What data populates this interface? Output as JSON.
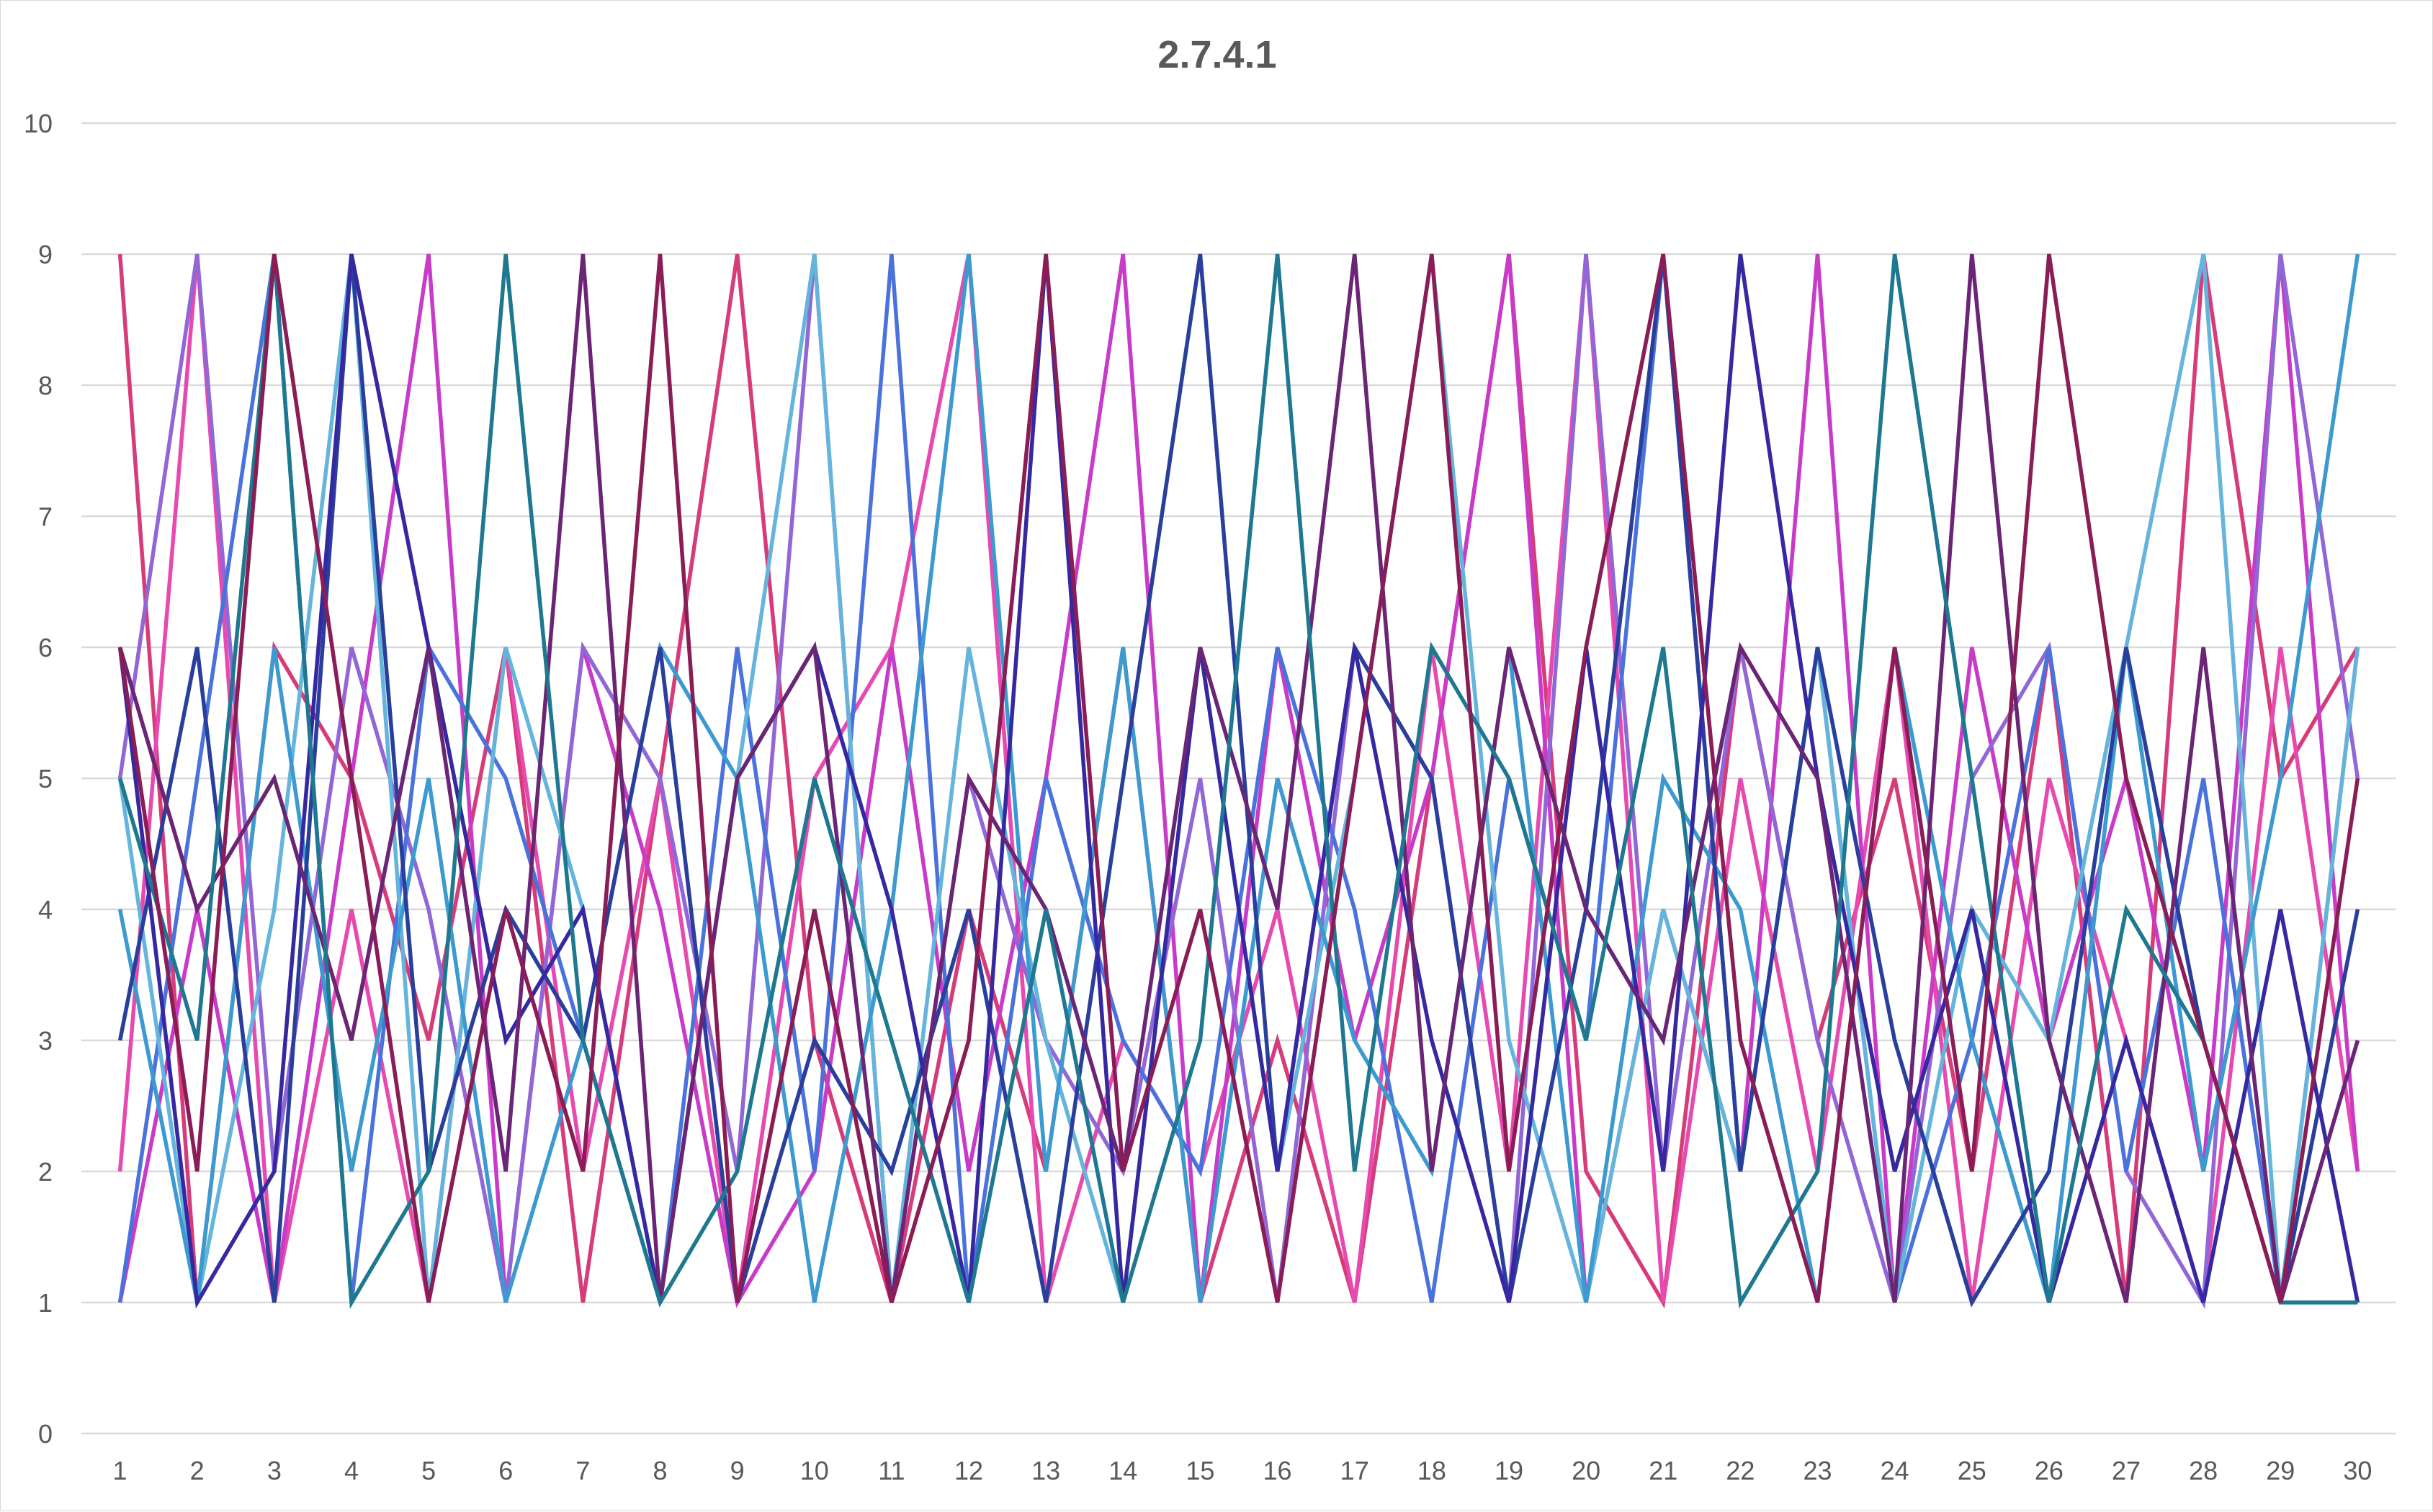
{
  "chart_data": {
    "type": "line",
    "title": "2.7.4.1",
    "xlabel": "",
    "ylabel": "",
    "x": [
      1,
      2,
      3,
      4,
      5,
      6,
      7,
      8,
      9,
      10,
      11,
      12,
      13,
      14,
      15,
      16,
      17,
      18,
      19,
      20,
      21,
      22,
      23,
      24,
      25,
      26,
      27,
      28,
      29,
      30
    ],
    "ylim": [
      0,
      10
    ],
    "yticks": [
      0,
      1,
      2,
      3,
      4,
      5,
      6,
      7,
      8,
      9,
      10
    ],
    "grid": true,
    "legend": "none",
    "series": [
      {
        "color": "#d63c7a",
        "values": [
          9,
          1,
          6,
          5,
          3,
          6,
          1,
          5,
          9,
          3,
          1,
          4,
          2,
          6,
          1,
          3,
          1,
          5,
          9,
          2,
          1,
          6,
          3,
          5,
          2,
          6,
          1,
          9,
          5,
          6
        ]
      },
      {
        "color": "#e64ab0",
        "values": [
          2,
          9,
          1,
          4,
          1,
          6,
          2,
          5,
          1,
          5,
          6,
          9,
          1,
          3,
          2,
          4,
          1,
          6,
          2,
          9,
          1,
          5,
          2,
          6,
          1,
          5,
          3,
          1,
          6,
          2
        ]
      },
      {
        "color": "#c83bc8",
        "values": [
          1,
          4,
          1,
          5,
          9,
          1,
          6,
          4,
          1,
          2,
          6,
          2,
          5,
          9,
          1,
          6,
          3,
          5,
          9,
          1,
          4,
          2,
          9,
          1,
          6,
          3,
          5,
          2,
          9,
          2
        ]
      },
      {
        "color": "#9166d6",
        "values": [
          5,
          9,
          2,
          6,
          4,
          1,
          6,
          5,
          2,
          9,
          1,
          5,
          3,
          2,
          5,
          1,
          6,
          5,
          1,
          9,
          2,
          6,
          3,
          1,
          5,
          6,
          2,
          1,
          9,
          5
        ]
      },
      {
        "color": "#4a72dc",
        "values": [
          1,
          5,
          9,
          1,
          6,
          5,
          3,
          1,
          6,
          2,
          9,
          1,
          5,
          3,
          2,
          6,
          4,
          1,
          5,
          3,
          9,
          2,
          6,
          1,
          3,
          6,
          2,
          5,
          1,
          6
        ]
      },
      {
        "color": "#64b4dc",
        "values": [
          5,
          1,
          4,
          9,
          1,
          6,
          4,
          1,
          5,
          9,
          1,
          6,
          3,
          1,
          6,
          2,
          5,
          9,
          3,
          1,
          4,
          2,
          6,
          1,
          4,
          3,
          6,
          9,
          1,
          6
        ]
      },
      {
        "color": "#3c9ad0",
        "values": [
          4,
          1,
          6,
          2,
          5,
          1,
          3,
          6,
          5,
          1,
          4,
          9,
          2,
          6,
          1,
          5,
          3,
          2,
          6,
          1,
          5,
          4,
          1,
          6,
          3,
          1,
          6,
          2,
          5,
          9
        ]
      },
      {
        "color": "#2a3e9c",
        "values": [
          3,
          6,
          1,
          9,
          2,
          4,
          3,
          6,
          1,
          3,
          2,
          4,
          1,
          5,
          9,
          2,
          6,
          5,
          1,
          4,
          9,
          2,
          6,
          3,
          1,
          2,
          6,
          3,
          1,
          4
        ]
      },
      {
        "color": "#3528a0",
        "values": [
          6,
          1,
          2,
          9,
          6,
          3,
          4,
          1,
          5,
          6,
          4,
          1,
          9,
          1,
          6,
          2,
          6,
          3,
          1,
          6,
          2,
          9,
          5,
          2,
          4,
          1,
          3,
          1,
          4,
          1
        ]
      },
      {
        "color": "#6a2575",
        "values": [
          6,
          4,
          5,
          3,
          6,
          2,
          9,
          1,
          5,
          6,
          1,
          5,
          4,
          2,
          6,
          4,
          9,
          2,
          6,
          4,
          3,
          6,
          5,
          1,
          9,
          3,
          1,
          6,
          1,
          3
        ]
      },
      {
        "color": "#1e7890",
        "values": [
          5,
          3,
          9,
          1,
          2,
          9,
          3,
          1,
          2,
          5,
          3,
          1,
          4,
          1,
          3,
          9,
          2,
          6,
          5,
          3,
          6,
          1,
          2,
          9,
          5,
          1,
          4,
          3,
          1,
          1
        ]
      },
      {
        "color": "#8a1c56",
        "values": [
          6,
          2,
          9,
          5,
          1,
          4,
          2,
          9,
          1,
          4,
          1,
          3,
          9,
          2,
          4,
          1,
          5,
          9,
          2,
          6,
          9,
          3,
          1,
          6,
          2,
          9,
          5,
          3,
          1,
          5
        ]
      }
    ]
  }
}
